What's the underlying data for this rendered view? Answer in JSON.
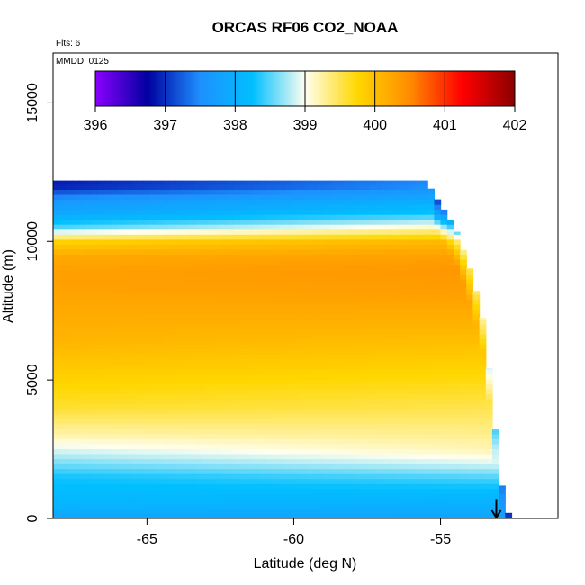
{
  "chart_data": {
    "type": "heatmap",
    "title": "ORCAS RF06 CO2_NOAA",
    "annotations": {
      "flights": "Flts: 6",
      "mmdd": "MMDD: 0125"
    },
    "xlabel": "Latitude (deg N)",
    "ylabel": "Altitude (m)",
    "xlim": [
      -68.2,
      -51.0
    ],
    "ylim": [
      0,
      16800
    ],
    "xticks": [
      -65,
      -60,
      -55
    ],
    "yticks": [
      0,
      5000,
      10000,
      15000
    ],
    "x_tick_labels": [
      "-65",
      "-60",
      "-55"
    ],
    "y_tick_labels": [
      "0",
      "5000",
      "10000",
      "15000"
    ],
    "colorbar": {
      "min": 396,
      "max": 402,
      "ticks": [
        396,
        397,
        398,
        399,
        400,
        401,
        402
      ],
      "tick_labels": [
        "396",
        "397",
        "398",
        "399",
        "400",
        "401",
        "402"
      ],
      "colors": [
        "#8B00FF",
        "#0000A0",
        "#1E90FF",
        "#00BFFF",
        "#FFFFF0",
        "#FFD700",
        "#FF8C00",
        "#FF0000",
        "#8B0000"
      ]
    },
    "profile": {
      "altitudes_m": [
        0,
        200,
        500,
        1000,
        1500,
        2000,
        2500,
        3000,
        3500,
        4000,
        4500,
        5000,
        5500,
        6000,
        6500,
        7000,
        7500,
        8000,
        8500,
        9000,
        9500,
        10000,
        10500,
        11000,
        11500,
        12000
      ],
      "co2_ppm_south": [
        397.9,
        397.9,
        398.1,
        398.2,
        398.3,
        398.6,
        398.9,
        399.2,
        399.4,
        399.6,
        399.7,
        399.8,
        399.9,
        400.0,
        400.1,
        400.15,
        400.2,
        400.25,
        400.3,
        400.3,
        400.2,
        399.8,
        398.5,
        397.9,
        397.6,
        396.9
      ],
      "co2_ppm_north": [
        397.8,
        397.9,
        398.0,
        398.2,
        398.5,
        398.9,
        399.2,
        399.3,
        399.4,
        399.5,
        399.6,
        399.7,
        399.8,
        399.9,
        400.0,
        400.1,
        400.2,
        400.3,
        400.35,
        400.4,
        400.3,
        400.1,
        399.3,
        398.4,
        398.0,
        397.6
      ]
    },
    "top_altitude_by_latitude": [
      {
        "lat": -68.2,
        "alt": 12200
      },
      {
        "lat": -55.5,
        "alt": 12200
      },
      {
        "lat": -55.1,
        "alt": 11500
      },
      {
        "lat": -54.5,
        "alt": 10500
      },
      {
        "lat": -54.0,
        "alt": 9000
      },
      {
        "lat": -53.6,
        "alt": 7500
      },
      {
        "lat": -53.3,
        "alt": 5000
      },
      {
        "lat": -53.1,
        "alt": 2900
      },
      {
        "lat": -52.8,
        "alt": 200
      }
    ],
    "flight_track_marker": {
      "lat": -53.1,
      "alt_from": 700,
      "alt_to": 0
    }
  }
}
